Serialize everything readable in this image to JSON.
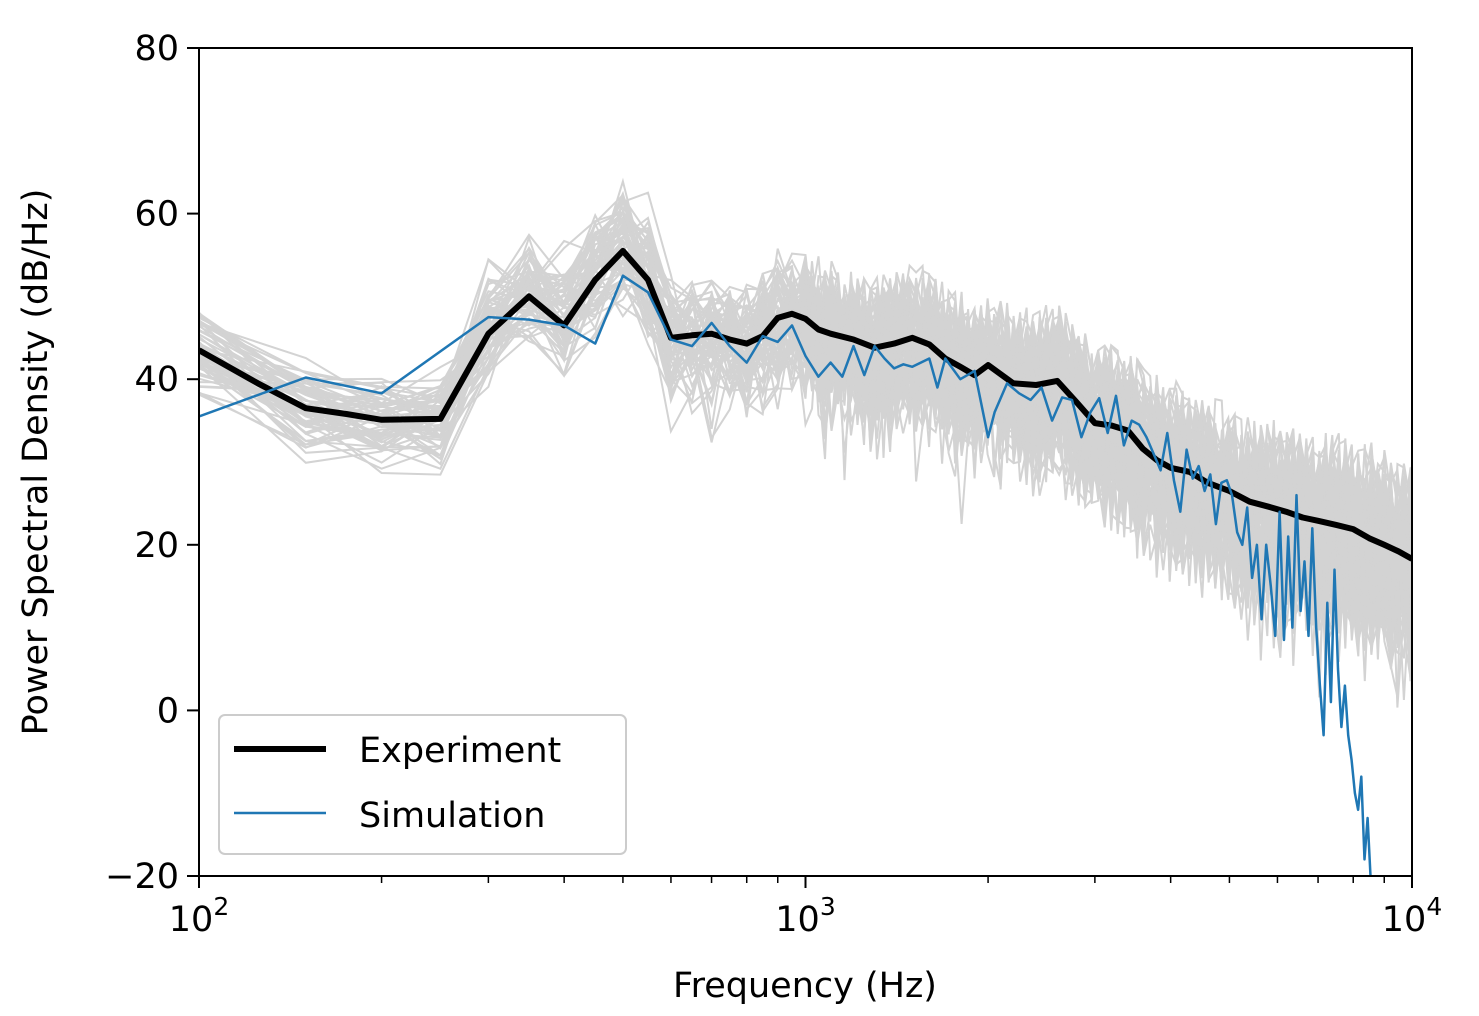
{
  "chart_data": {
    "type": "line",
    "title": "",
    "xlabel": "Frequency (Hz)",
    "ylabel": "Power Spectral Density (dB/Hz)",
    "xscale": "log",
    "xlim": [
      100,
      10000
    ],
    "ylim": [
      -20,
      80
    ],
    "x_ticks": [
      {
        "value": 100,
        "base": "10",
        "exp": "2"
      },
      {
        "value": 1000,
        "base": "10",
        "exp": "3"
      },
      {
        "value": 10000,
        "base": "10",
        "exp": "4"
      }
    ],
    "y_ticks": [
      {
        "value": -20,
        "label": "−20"
      },
      {
        "value": 0,
        "label": "0"
      },
      {
        "value": 20,
        "label": "20"
      },
      {
        "value": 40,
        "label": "40"
      },
      {
        "value": 60,
        "label": "60"
      },
      {
        "value": 80,
        "label": "80"
      }
    ],
    "grid": false,
    "legend": {
      "placement": "lower-left"
    },
    "colors": {
      "experiment": "#000000",
      "simulation": "#1f77b4",
      "ensemble": "#d3d3d3"
    },
    "series": [
      {
        "name": "Experiment",
        "color": "#000000",
        "points": [
          [
            100,
            43.5
          ],
          [
            125,
            39.5
          ],
          [
            150,
            36.5
          ],
          [
            175,
            35.8
          ],
          [
            200,
            35.1
          ],
          [
            250,
            35.2
          ],
          [
            300,
            45.5
          ],
          [
            350,
            50.0
          ],
          [
            400,
            46.5
          ],
          [
            450,
            52.0
          ],
          [
            500,
            55.5
          ],
          [
            550,
            52.0
          ],
          [
            600,
            45.0
          ],
          [
            650,
            45.3
          ],
          [
            700,
            45.5
          ],
          [
            750,
            44.8
          ],
          [
            800,
            44.3
          ],
          [
            850,
            45.2
          ],
          [
            900,
            47.4
          ],
          [
            950,
            47.9
          ],
          [
            1000,
            47.3
          ],
          [
            1050,
            46.0
          ],
          [
            1100,
            45.5
          ],
          [
            1200,
            44.8
          ],
          [
            1300,
            43.8
          ],
          [
            1400,
            44.3
          ],
          [
            1500,
            45.0
          ],
          [
            1600,
            44.2
          ],
          [
            1700,
            42.5
          ],
          [
            1800,
            41.5
          ],
          [
            1900,
            40.5
          ],
          [
            2000,
            41.7
          ],
          [
            2200,
            39.5
          ],
          [
            2400,
            39.3
          ],
          [
            2600,
            39.8
          ],
          [
            2800,
            37.2
          ],
          [
            3000,
            34.7
          ],
          [
            3200,
            34.4
          ],
          [
            3400,
            33.8
          ],
          [
            3600,
            31.6
          ],
          [
            3800,
            30.2
          ],
          [
            4000,
            29.3
          ],
          [
            4300,
            28.8
          ],
          [
            4600,
            27.5
          ],
          [
            5000,
            26.5
          ],
          [
            5400,
            25.2
          ],
          [
            5800,
            24.6
          ],
          [
            6200,
            24.0
          ],
          [
            6600,
            23.3
          ],
          [
            7000,
            22.9
          ],
          [
            7500,
            22.4
          ],
          [
            8000,
            21.9
          ],
          [
            8500,
            20.8
          ],
          [
            9000,
            20.0
          ],
          [
            9500,
            19.2
          ],
          [
            10000,
            18.3
          ]
        ]
      },
      {
        "name": "Simulation",
        "color": "#1f77b4",
        "points": [
          [
            100,
            35.5
          ],
          [
            150,
            40.2
          ],
          [
            200,
            38.3
          ],
          [
            300,
            47.5
          ],
          [
            350,
            47.2
          ],
          [
            400,
            46.5
          ],
          [
            450,
            44.3
          ],
          [
            500,
            52.5
          ],
          [
            550,
            50.5
          ],
          [
            600,
            44.8
          ],
          [
            650,
            44.0
          ],
          [
            700,
            46.8
          ],
          [
            750,
            44.0
          ],
          [
            800,
            42.0
          ],
          [
            850,
            45.2
          ],
          [
            900,
            44.5
          ],
          [
            950,
            46.5
          ],
          [
            1000,
            42.8
          ],
          [
            1050,
            40.3
          ],
          [
            1100,
            42.0
          ],
          [
            1150,
            40.3
          ],
          [
            1200,
            44.0
          ],
          [
            1250,
            40.5
          ],
          [
            1300,
            44.0
          ],
          [
            1350,
            42.5
          ],
          [
            1400,
            41.3
          ],
          [
            1450,
            41.8
          ],
          [
            1500,
            41.5
          ],
          [
            1600,
            42.5
          ],
          [
            1650,
            39.0
          ],
          [
            1700,
            42.5
          ],
          [
            1800,
            40.0
          ],
          [
            1900,
            41.0
          ],
          [
            2000,
            33.0
          ],
          [
            2050,
            36.0
          ],
          [
            2150,
            39.5
          ],
          [
            2250,
            38.3
          ],
          [
            2350,
            37.5
          ],
          [
            2450,
            39.0
          ],
          [
            2550,
            35.0
          ],
          [
            2650,
            37.8
          ],
          [
            2750,
            37.5
          ],
          [
            2850,
            33.0
          ],
          [
            2950,
            36.0
          ],
          [
            3050,
            37.7
          ],
          [
            3150,
            33.5
          ],
          [
            3250,
            38.0
          ],
          [
            3350,
            32.0
          ],
          [
            3450,
            35.0
          ],
          [
            3550,
            34.5
          ],
          [
            3650,
            33.0
          ],
          [
            3750,
            31.0
          ],
          [
            3850,
            29.0
          ],
          [
            3950,
            33.5
          ],
          [
            4050,
            27.8
          ],
          [
            4150,
            24.0
          ],
          [
            4250,
            31.5
          ],
          [
            4350,
            28.0
          ],
          [
            4450,
            29.5
          ],
          [
            4550,
            26.5
          ],
          [
            4650,
            28.5
          ],
          [
            4750,
            22.5
          ],
          [
            4850,
            27.5
          ],
          [
            4950,
            27.8
          ],
          [
            5050,
            26.0
          ],
          [
            5150,
            21.5
          ],
          [
            5250,
            20.0
          ],
          [
            5350,
            24.5
          ],
          [
            5450,
            16.0
          ],
          [
            5550,
            20.0
          ],
          [
            5650,
            11.0
          ],
          [
            5750,
            20.0
          ],
          [
            5850,
            15.0
          ],
          [
            5950,
            9.0
          ],
          [
            6050,
            24.0
          ],
          [
            6150,
            8.5
          ],
          [
            6250,
            21.0
          ],
          [
            6350,
            10.0
          ],
          [
            6450,
            26.0
          ],
          [
            6550,
            12.0
          ],
          [
            6650,
            18.0
          ],
          [
            6750,
            9.0
          ],
          [
            6850,
            22.0
          ],
          [
            6950,
            10.0
          ],
          [
            7050,
            3.0
          ],
          [
            7150,
            -3.0
          ],
          [
            7250,
            13.0
          ],
          [
            7350,
            1.0
          ],
          [
            7450,
            17.0
          ],
          [
            7550,
            5.0
          ],
          [
            7650,
            -2.0
          ],
          [
            7750,
            3.0
          ],
          [
            7850,
            -3.0
          ],
          [
            7950,
            -6.0
          ],
          [
            8050,
            -10.0
          ],
          [
            8150,
            -12.0
          ],
          [
            8250,
            -8.0
          ],
          [
            8350,
            -18.0
          ],
          [
            8450,
            -13.0
          ],
          [
            8550,
            -20.5
          ]
        ]
      }
    ]
  }
}
